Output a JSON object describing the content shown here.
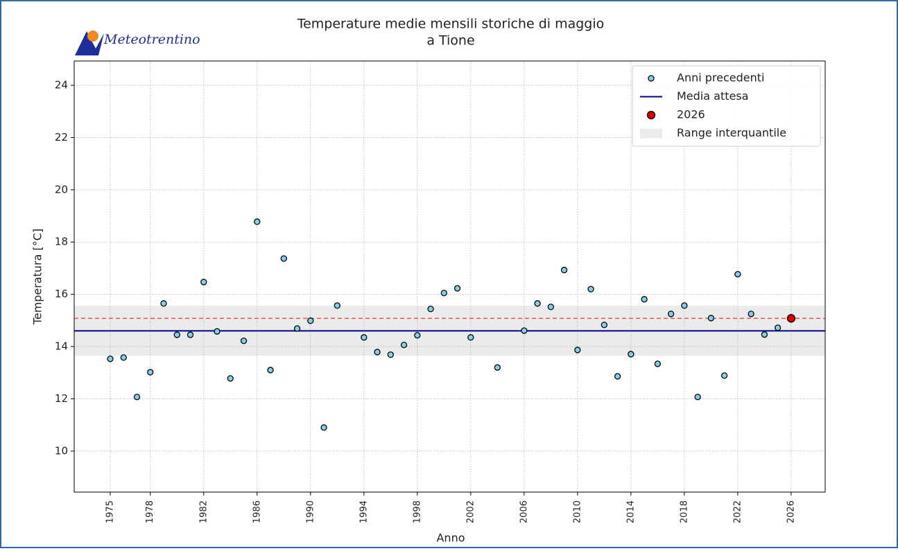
{
  "chart_data": {
    "type": "scatter",
    "logo": "Meteotrentino",
    "title_lines": [
      "Temperature medie mensili storiche di maggio",
      "a Tione"
    ],
    "xlabel": "Anno",
    "ylabel": "Temperatura [°C]",
    "xlim": [
      1972.3,
      2028.55
    ],
    "ylim": [
      8.43,
      24.93
    ],
    "xticks": [
      1975,
      1978,
      1982,
      1986,
      1990,
      1994,
      1998,
      2002,
      2006,
      2010,
      2014,
      2018,
      2022,
      2026
    ],
    "yticks": [
      10,
      12,
      14,
      16,
      18,
      20,
      22,
      24
    ],
    "grid": true,
    "legend": "upper right",
    "band": {
      "name": "Range interquantile",
      "range": [
        13.65,
        15.57
      ],
      "color": "#ebebeb"
    },
    "reference_line": {
      "name": "Media attesa",
      "value": 14.6,
      "color": "#00008b"
    },
    "forecast_line": {
      "value": 15.08,
      "color": "#e8504f"
    },
    "series": [
      {
        "name": "Anni precedenti",
        "color": "#87ceeb",
        "x": [
          1975,
          1976,
          1977,
          1978,
          1979,
          1980,
          1981,
          1982,
          1983,
          1984,
          1985,
          1986,
          1987,
          1988,
          1989,
          1990,
          1991,
          1992,
          1994,
          1995,
          1996,
          1997,
          1998,
          1999,
          2000,
          2001,
          2002,
          2004,
          2006,
          2007,
          2008,
          2009,
          2010,
          2011,
          2012,
          2013,
          2014,
          2015,
          2016,
          2017,
          2018,
          2019,
          2020,
          2021,
          2022,
          2023,
          2024,
          2025
        ],
        "values": [
          13.53,
          13.58,
          12.07,
          13.02,
          15.65,
          14.45,
          14.45,
          16.47,
          14.58,
          12.78,
          14.22,
          18.78,
          13.1,
          17.37,
          14.69,
          14.99,
          10.9,
          15.57,
          14.35,
          13.79,
          13.69,
          14.06,
          14.43,
          15.44,
          16.05,
          16.23,
          14.35,
          13.2,
          14.61,
          15.65,
          15.52,
          16.93,
          13.87,
          16.2,
          14.83,
          12.86,
          13.71,
          15.81,
          13.34,
          15.25,
          15.57,
          12.07,
          15.09,
          12.89,
          16.77,
          15.25,
          14.46,
          14.72
        ]
      },
      {
        "name": "2026",
        "color": "#e00000",
        "x": [
          2026
        ],
        "values": [
          15.08
        ]
      }
    ]
  }
}
